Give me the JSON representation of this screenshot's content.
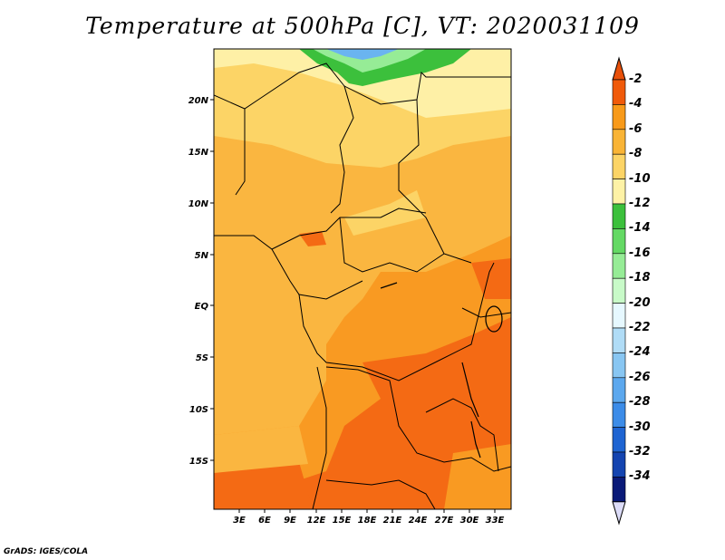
{
  "title": "Temperature at 500hPa [C], VT: 2020031109",
  "credit": "GrADS: IGES/COLA",
  "lat_ticks": [
    "20N",
    "15N",
    "10N",
    "5N",
    "EQ",
    "5S",
    "10S",
    "15S"
  ],
  "lon_ticks": [
    "3E",
    "6E",
    "9E",
    "12E",
    "15E",
    "18E",
    "21E",
    "24E",
    "27E",
    "30E",
    "33E"
  ],
  "colorbar": {
    "labels": [
      "-2",
      "-4",
      "-6",
      "-8",
      "-10",
      "-12",
      "-14",
      "-16",
      "-18",
      "-20",
      "-22",
      "-24",
      "-26",
      "-28",
      "-30",
      "-32",
      "-34"
    ],
    "colors": [
      "#f05a0a",
      "#f89a1a",
      "#f9b436",
      "#fcd466",
      "#fef2a6",
      "#3cc03c",
      "#64d964",
      "#96ec96",
      "#c8fac8",
      "#e6f8ff",
      "#b0dcf6",
      "#88c6f2",
      "#5ca8ee",
      "#3c8ce8",
      "#1e64d2",
      "#1444b0",
      "#0a1a78"
    ],
    "top_arrow": "#e8500a",
    "bottom_arrow": "#dcdcf8"
  },
  "palette": {
    "border": "#000000",
    "warmest": "#f46a14",
    "orange": "#f99a22",
    "light_orange": "#fab640",
    "yellow": "#fcd466",
    "pale": "#fef0a6",
    "green": "#3cc03c",
    "blue": "#6ab4f0"
  }
}
